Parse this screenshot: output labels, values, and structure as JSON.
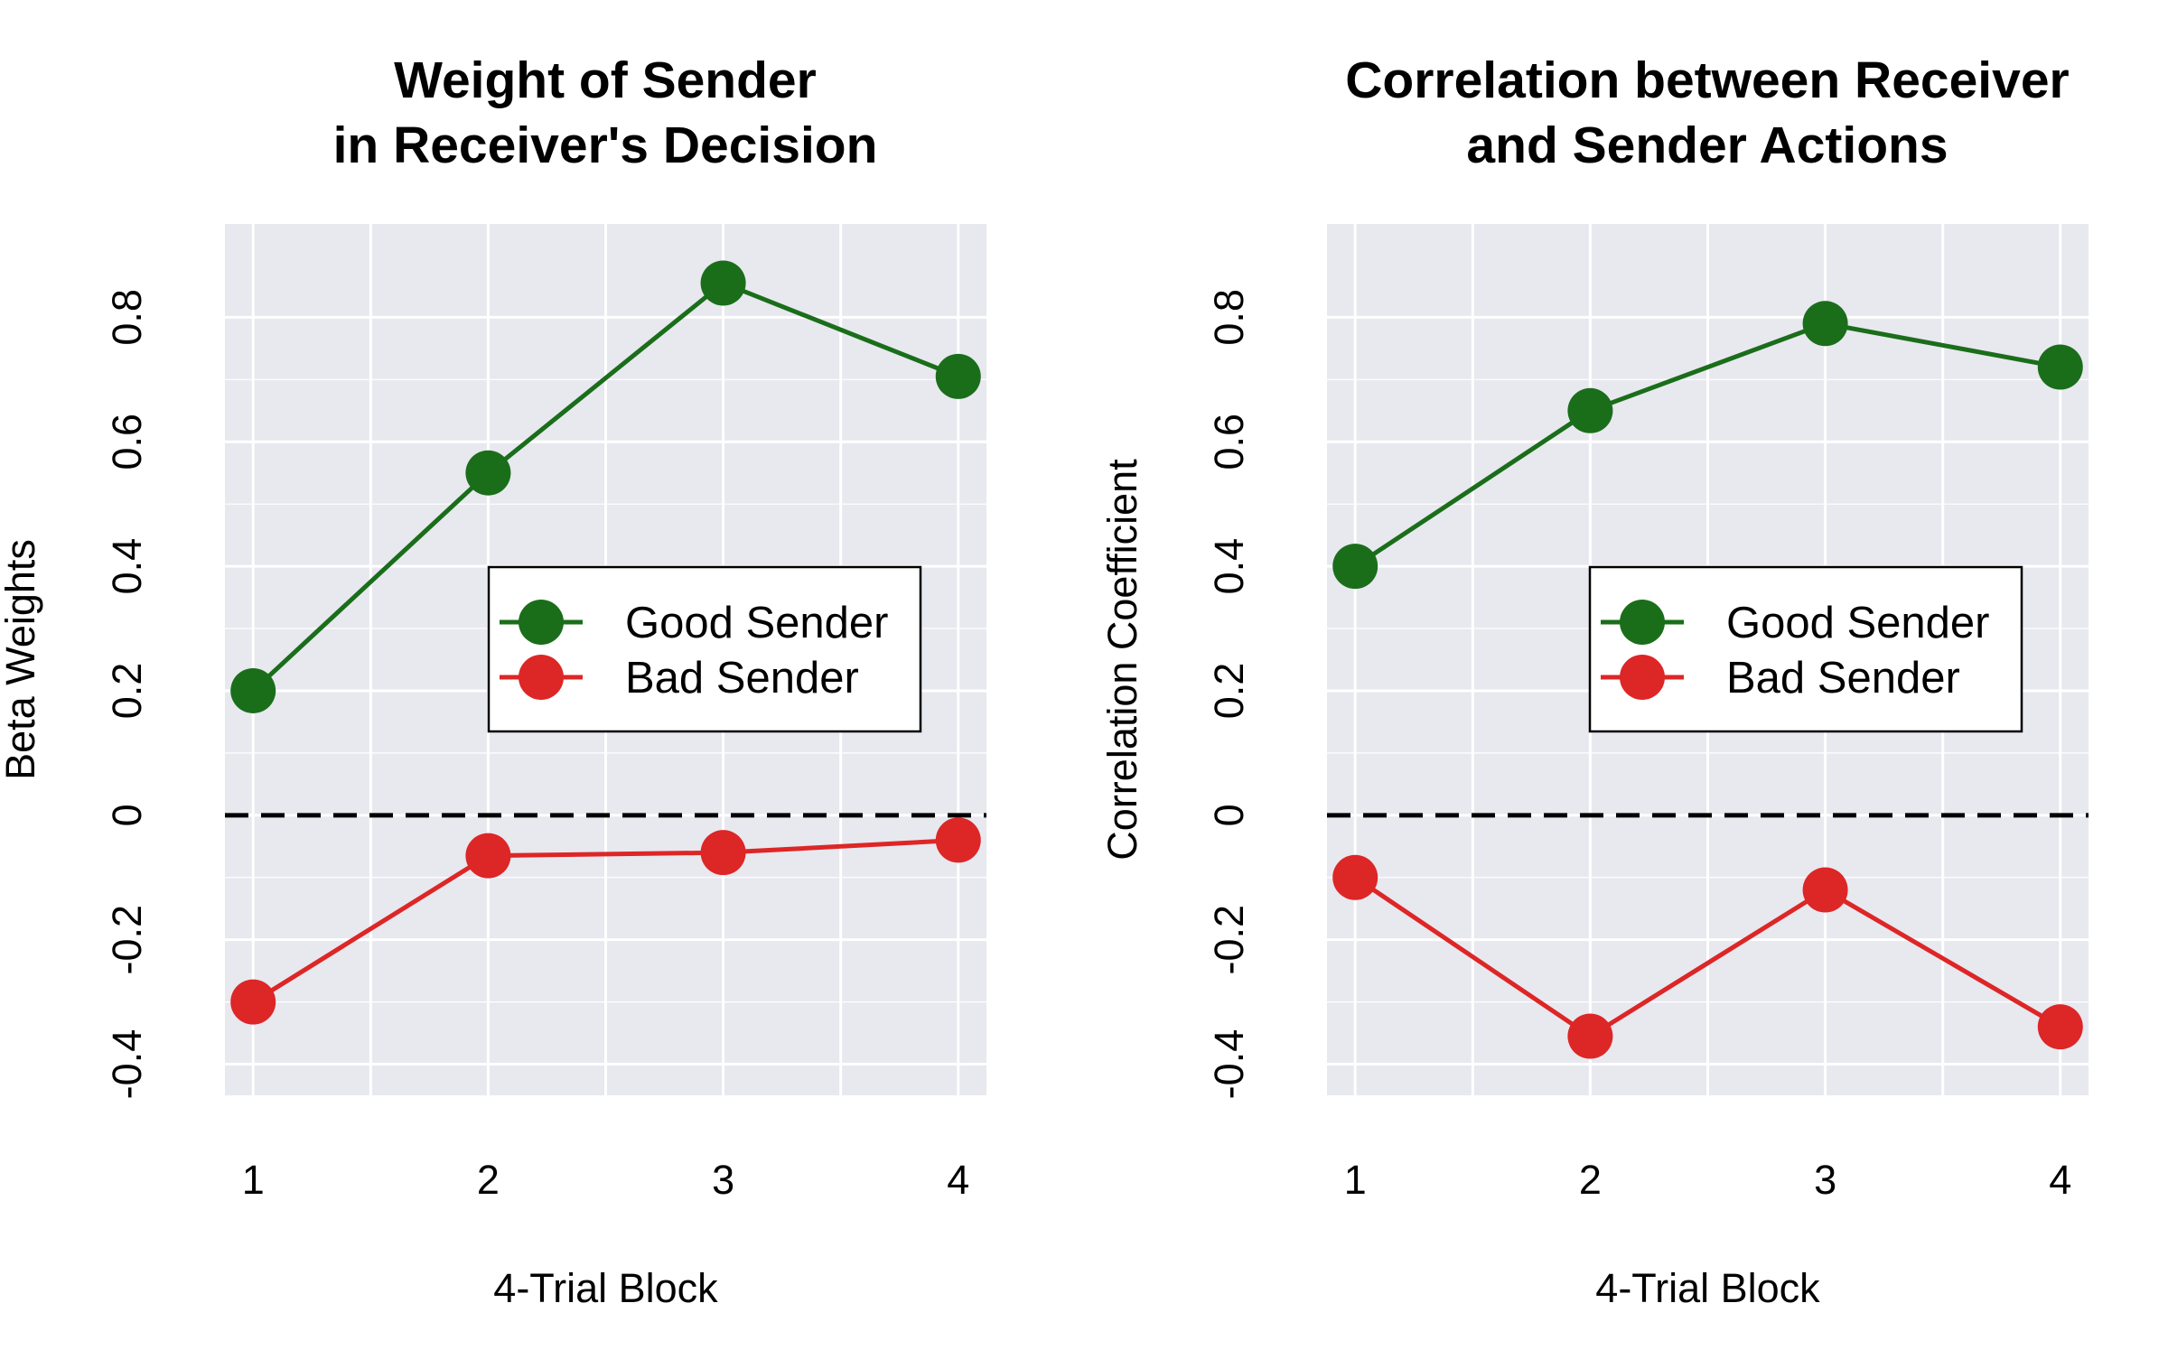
{
  "colors": {
    "good": "#1a6e1a",
    "bad": "#dd2626",
    "panel_bg": "#e8e8ef",
    "grid": "#ffffff",
    "zero_line": "#000000"
  },
  "chart_data": [
    {
      "type": "line",
      "title": [
        "Weight of Sender",
        "in Receiver's Decision"
      ],
      "xlabel": "4-Trial Block",
      "ylabel": "Beta Weights",
      "categories": [
        "1",
        "2",
        "3",
        "4"
      ],
      "x": [
        1,
        2,
        3,
        4
      ],
      "xlim": [
        0.88,
        4.12
      ],
      "ylim": [
        -0.45,
        0.95
      ],
      "yticks": [
        -0.4,
        -0.2,
        0,
        0.2,
        0.4,
        0.6,
        0.8
      ],
      "ytick_labels": [
        "-0.4",
        "-0.2",
        "0",
        "0.2",
        "0.4",
        "0.6",
        "0.8"
      ],
      "reference_line": 0,
      "legend": "center-right",
      "grid": true,
      "series": [
        {
          "name": "Good Sender",
          "color": "#1a6e1a",
          "values": [
            0.2,
            0.55,
            0.855,
            0.705
          ]
        },
        {
          "name": "Bad Sender",
          "color": "#dd2626",
          "values": [
            -0.3,
            -0.065,
            -0.06,
            -0.04
          ]
        }
      ]
    },
    {
      "type": "line",
      "title": [
        "Correlation between Receiver",
        "and Sender Actions"
      ],
      "xlabel": "4-Trial Block",
      "ylabel": "Correlation Coefficient",
      "categories": [
        "1",
        "2",
        "3",
        "4"
      ],
      "x": [
        1,
        2,
        3,
        4
      ],
      "xlim": [
        0.88,
        4.12
      ],
      "ylim": [
        -0.45,
        0.95
      ],
      "yticks": [
        -0.4,
        -0.2,
        0,
        0.2,
        0.4,
        0.6,
        0.8
      ],
      "ytick_labels": [
        "-0.4",
        "-0.2",
        "0",
        "0.2",
        "0.4",
        "0.6",
        "0.8"
      ],
      "reference_line": 0,
      "legend": "center-right",
      "grid": true,
      "series": [
        {
          "name": "Good Sender",
          "color": "#1a6e1a",
          "values": [
            0.4,
            0.65,
            0.79,
            0.72
          ]
        },
        {
          "name": "Bad Sender",
          "color": "#dd2626",
          "values": [
            -0.1,
            -0.355,
            -0.12,
            -0.34
          ]
        }
      ]
    }
  ]
}
